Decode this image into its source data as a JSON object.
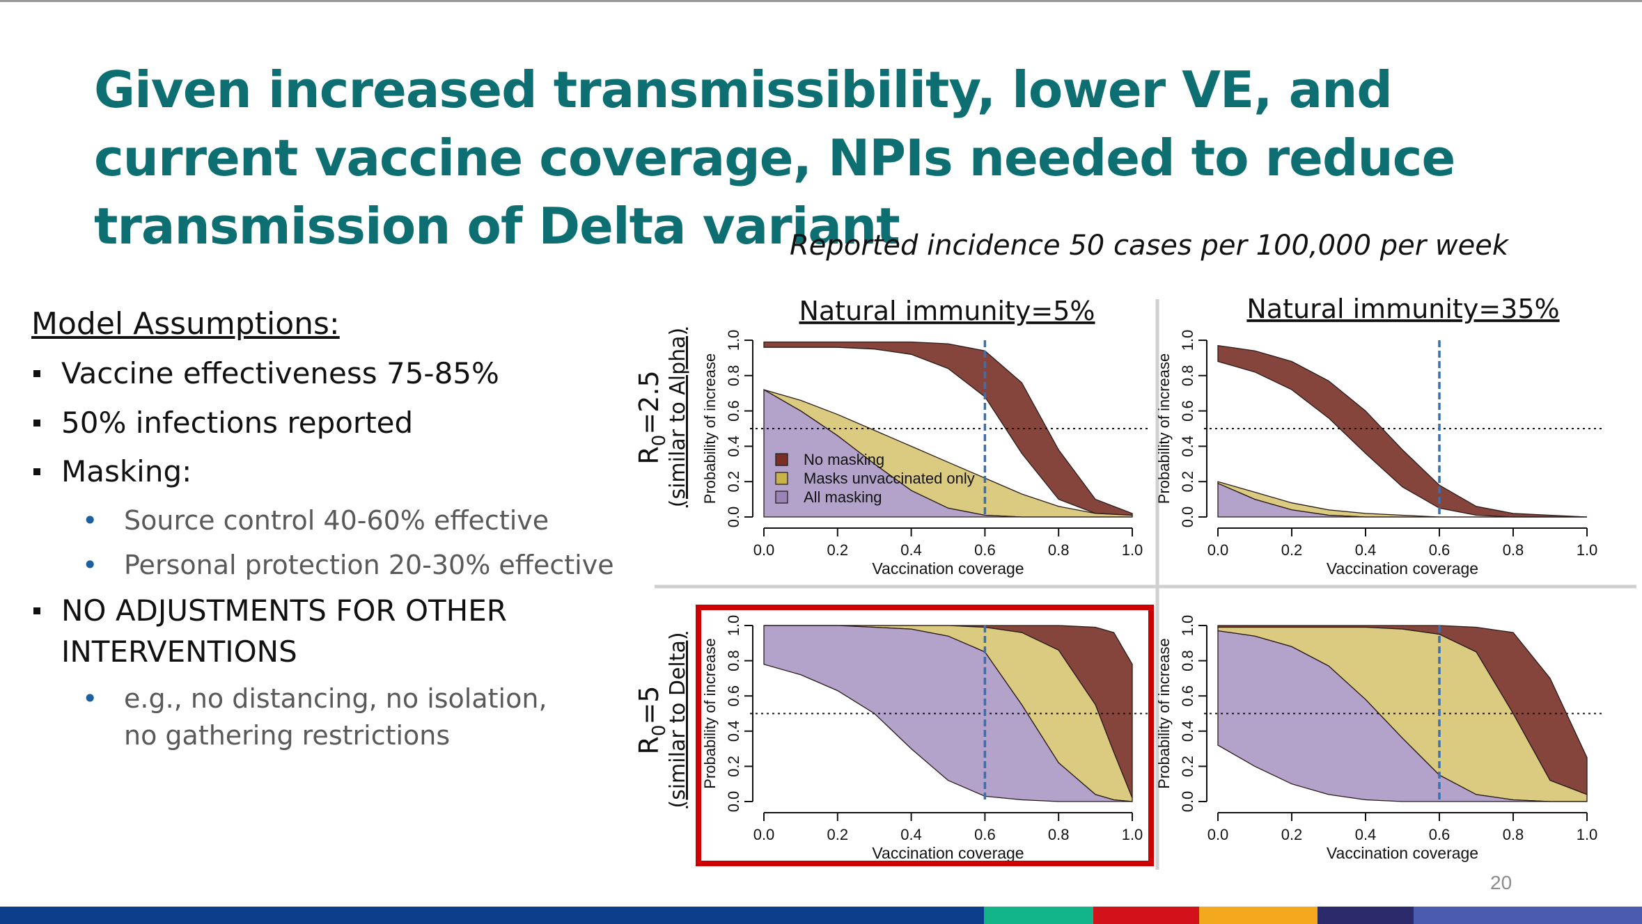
{
  "slide": {
    "title": "Given increased transmissibility, lower VE, and current vaccine coverage, NPIs needed to reduce transmission of Delta variant",
    "subtitle": "Reported incidence 50 cases per 100,000 per week",
    "page_number": "20",
    "assumptions_heading": "Model Assumptions:",
    "bullets": [
      "Vaccine effectiveness 75-85%",
      "50% infections reported",
      "Masking:",
      "NO ADJUSTMENTS FOR OTHER",
      "INTERVENTIONS"
    ],
    "sub_bullets": [
      "Source control 40-60% effective",
      "Personal protection 20-30% effective",
      "e.g., no distancing, no isolation,",
      "no gathering restrictions"
    ],
    "footer_colors": [
      "#0b3f8c",
      "#0b3f8c",
      "#12b58a",
      "#d2111a",
      "#f4a81d",
      "#2b2a6b",
      "#4a5bb0"
    ]
  },
  "chart_data": {
    "type": "area",
    "column_titles": [
      "Natural immunity=5%",
      "Natural immunity=35%"
    ],
    "row_titles": [
      {
        "main_prefix": "R",
        "main_sub": "0",
        "main_suffix": "=2.5",
        "note": "(similar to Alpha)"
      },
      {
        "main_prefix": "R",
        "main_sub": "0",
        "main_suffix": "=5",
        "note": "(similar to Delta)"
      }
    ],
    "xlabel": "Vaccination coverage",
    "ylabel": "Probability of increase",
    "xlim": [
      0,
      1
    ],
    "ylim": [
      0,
      1
    ],
    "xticks": [
      "0.0",
      "0.2",
      "0.4",
      "0.6",
      "0.8",
      "1.0"
    ],
    "yticks": [
      "0.0",
      "0.2",
      "0.4",
      "0.6",
      "0.8",
      "1.0"
    ],
    "reference_vline": 0.6,
    "reference_hline": 0.5,
    "highlighted_panel": "R0=5, Natural immunity=5%",
    "legend": [
      {
        "name": "No masking",
        "color": "#7a2e25"
      },
      {
        "name": "Masks unvaccinated only",
        "color": "#c8b24a"
      },
      {
        "name": "All masking",
        "color": "#9b83b8"
      }
    ],
    "series_colors": {
      "No masking": "#7f3b32",
      "Masks unvaccinated only": "#d1bc5c",
      "All masking": "#9d88ba"
    },
    "panels": [
      {
        "row": 0,
        "col": 0,
        "series": [
          {
            "name": "No masking",
            "x": [
              0,
              0.1,
              0.2,
              0.3,
              0.4,
              0.5,
              0.6,
              0.7,
              0.8,
              0.9,
              1.0
            ],
            "upper": [
              0.99,
              0.99,
              0.99,
              0.99,
              0.99,
              0.98,
              0.94,
              0.76,
              0.38,
              0.1,
              0.02
            ],
            "lower": [
              0.96,
              0.96,
              0.96,
              0.95,
              0.92,
              0.84,
              0.68,
              0.36,
              0.1,
              0.02,
              0.01
            ]
          },
          {
            "name": "Masks unvaccinated only",
            "x": [
              0,
              0.1,
              0.2,
              0.3,
              0.4,
              0.5,
              0.6,
              0.7,
              0.8,
              0.9,
              1.0
            ],
            "upper": [
              0.72,
              0.66,
              0.58,
              0.49,
              0.4,
              0.31,
              0.22,
              0.13,
              0.06,
              0.02,
              0.01
            ],
            "lower": [
              0.72,
              0.6,
              0.46,
              0.3,
              0.15,
              0.05,
              0.01,
              0,
              0,
              0,
              0
            ]
          },
          {
            "name": "All masking",
            "x": [
              0,
              0.1,
              0.2,
              0.3,
              0.4,
              0.5,
              0.6,
              0.7,
              0.8,
              0.9,
              1.0
            ],
            "upper": [
              0.72,
              0.6,
              0.46,
              0.3,
              0.15,
              0.05,
              0.01,
              0,
              0,
              0,
              0
            ],
            "lower": [
              0,
              0,
              0,
              0,
              0,
              0,
              0,
              0,
              0,
              0,
              0
            ]
          }
        ]
      },
      {
        "row": 0,
        "col": 1,
        "series": [
          {
            "name": "No masking",
            "x": [
              0,
              0.1,
              0.2,
              0.3,
              0.4,
              0.5,
              0.6,
              0.7,
              0.8,
              0.9,
              1.0
            ],
            "upper": [
              0.97,
              0.94,
              0.88,
              0.77,
              0.6,
              0.38,
              0.18,
              0.06,
              0.02,
              0.01,
              0
            ],
            "lower": [
              0.88,
              0.82,
              0.72,
              0.56,
              0.36,
              0.17,
              0.05,
              0.01,
              0,
              0,
              0
            ]
          },
          {
            "name": "Masks unvaccinated only",
            "x": [
              0,
              0.1,
              0.2,
              0.3,
              0.4,
              0.5,
              0.6,
              0.7,
              0.8,
              0.9,
              1.0
            ],
            "upper": [
              0.2,
              0.14,
              0.08,
              0.04,
              0.02,
              0.01,
              0,
              0,
              0,
              0,
              0
            ],
            "lower": [
              0.19,
              0.1,
              0.04,
              0.01,
              0,
              0,
              0,
              0,
              0,
              0,
              0
            ]
          },
          {
            "name": "All masking",
            "x": [
              0,
              0.1,
              0.2,
              0.3,
              0.4,
              0.5,
              0.6,
              0.7,
              0.8,
              0.9,
              1.0
            ],
            "upper": [
              0.19,
              0.1,
              0.04,
              0.01,
              0,
              0,
              0,
              0,
              0,
              0,
              0
            ],
            "lower": [
              0,
              0,
              0,
              0,
              0,
              0,
              0,
              0,
              0,
              0,
              0
            ]
          }
        ]
      },
      {
        "row": 1,
        "col": 0,
        "series": [
          {
            "name": "No masking",
            "x": [
              0,
              0.1,
              0.2,
              0.3,
              0.4,
              0.5,
              0.6,
              0.7,
              0.8,
              0.9,
              0.95,
              1.0
            ],
            "upper": [
              1,
              1,
              1,
              1,
              1,
              1,
              1,
              1,
              1,
              0.99,
              0.96,
              0.78
            ],
            "lower": [
              1,
              1,
              1,
              1,
              1,
              1,
              0.99,
              0.96,
              0.86,
              0.55,
              0.28,
              0.02
            ]
          },
          {
            "name": "Masks unvaccinated only",
            "x": [
              0,
              0.1,
              0.2,
              0.3,
              0.4,
              0.5,
              0.6,
              0.7,
              0.8,
              0.9,
              0.95,
              1.0
            ],
            "upper": [
              1,
              1,
              1,
              1,
              1,
              1,
              0.99,
              0.96,
              0.86,
              0.55,
              0.28,
              0.02
            ],
            "lower": [
              1,
              1,
              1,
              0.99,
              0.98,
              0.94,
              0.85,
              0.55,
              0.22,
              0.04,
              0.01,
              0
            ]
          },
          {
            "name": "All masking",
            "x": [
              0,
              0.1,
              0.2,
              0.3,
              0.4,
              0.5,
              0.6,
              0.7,
              0.8,
              0.9,
              0.95,
              1.0
            ],
            "upper": [
              1,
              1,
              1,
              0.99,
              0.98,
              0.94,
              0.85,
              0.55,
              0.22,
              0.04,
              0.01,
              0
            ],
            "lower": [
              0.78,
              0.72,
              0.63,
              0.5,
              0.3,
              0.12,
              0.03,
              0.01,
              0,
              0,
              0,
              0
            ]
          }
        ]
      },
      {
        "row": 1,
        "col": 1,
        "series": [
          {
            "name": "No masking",
            "x": [
              0,
              0.1,
              0.2,
              0.3,
              0.4,
              0.5,
              0.6,
              0.7,
              0.8,
              0.9,
              1.0
            ],
            "upper": [
              1,
              1,
              1,
              1,
              1,
              1,
              1,
              0.99,
              0.96,
              0.7,
              0.25
            ],
            "lower": [
              0.99,
              0.99,
              0.99,
              0.99,
              0.99,
              0.98,
              0.95,
              0.85,
              0.5,
              0.12,
              0.04
            ]
          },
          {
            "name": "Masks unvaccinated only",
            "x": [
              0,
              0.1,
              0.2,
              0.3,
              0.4,
              0.5,
              0.6,
              0.7,
              0.8,
              0.9,
              1.0
            ],
            "upper": [
              0.99,
              0.99,
              0.99,
              0.99,
              0.99,
              0.98,
              0.95,
              0.85,
              0.5,
              0.12,
              0.04
            ],
            "lower": [
              0.97,
              0.94,
              0.88,
              0.77,
              0.58,
              0.36,
              0.15,
              0.04,
              0.01,
              0,
              0
            ]
          },
          {
            "name": "All masking",
            "x": [
              0,
              0.1,
              0.2,
              0.3,
              0.4,
              0.5,
              0.6,
              0.7,
              0.8,
              0.9,
              1.0
            ],
            "upper": [
              0.97,
              0.94,
              0.88,
              0.77,
              0.58,
              0.36,
              0.15,
              0.04,
              0.01,
              0,
              0
            ],
            "lower": [
              0.32,
              0.2,
              0.1,
              0.04,
              0.01,
              0,
              0,
              0,
              0,
              0,
              0
            ]
          }
        ]
      }
    ]
  }
}
